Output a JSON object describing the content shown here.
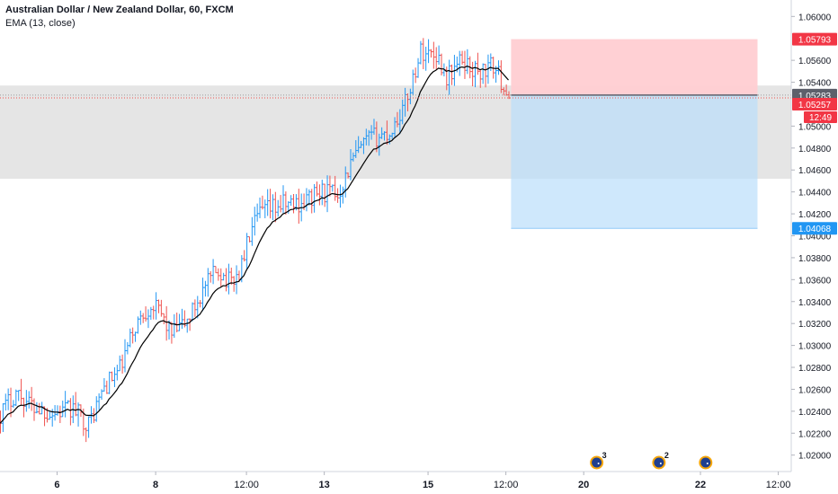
{
  "header": {
    "title": "Australian Dollar / New Zealand Dollar, 60, FXCM",
    "indicator": "EMA (13, close)"
  },
  "colors": {
    "up": "#2196f3",
    "down": "#ef5350",
    "ema": "#000000",
    "zone": "#e0e0e0",
    "stop_zone": "#ffcdd2",
    "target_zone": "#bbdefb",
    "axis_text": "#131722",
    "price_dotted": "#ef5350"
  },
  "chart_data": {
    "type": "ohlc",
    "symbol": "AUDNZD",
    "interval": "60",
    "indicator": "EMA (13, close)",
    "y_axis": {
      "ticks": [
        "1.06000",
        "1.05600",
        "1.05400",
        "1.05000",
        "1.04800",
        "1.04600",
        "1.04400",
        "1.04200",
        "1.04000",
        "1.03800",
        "1.03600",
        "1.03400",
        "1.03200",
        "1.03000",
        "1.02800",
        "1.02600",
        "1.02400",
        "1.02200",
        "1.02000"
      ],
      "tick_values": [
        1.06,
        1.056,
        1.054,
        1.05,
        1.048,
        1.046,
        1.044,
        1.042,
        1.04,
        1.038,
        1.036,
        1.034,
        1.032,
        1.03,
        1.028,
        1.026,
        1.024,
        1.022,
        1.02
      ],
      "range": [
        1.0185,
        1.0615
      ]
    },
    "x_axis": {
      "labels": [
        "6",
        "8",
        "12:00",
        "13",
        "15",
        "12:00",
        "20",
        "22",
        "12:00"
      ],
      "label_bars": [
        22,
        60,
        95,
        125,
        165,
        195,
        225,
        270,
        300
      ],
      "bold": [
        true,
        true,
        false,
        true,
        true,
        false,
        true,
        true,
        false
      ],
      "range_bars": [
        0,
        305
      ]
    },
    "close_path": [
      [
        0,
        1.0238
      ],
      [
        6,
        1.0258
      ],
      [
        12,
        1.0245
      ],
      [
        20,
        1.0238
      ],
      [
        28,
        1.0242
      ],
      [
        34,
        1.0228
      ],
      [
        40,
        1.0262
      ],
      [
        46,
        1.0278
      ],
      [
        52,
        1.0318
      ],
      [
        58,
        1.0338
      ],
      [
        62,
        1.0328
      ],
      [
        66,
        1.031
      ],
      [
        72,
        1.0322
      ],
      [
        78,
        1.035
      ],
      [
        84,
        1.037
      ],
      [
        88,
        1.0358
      ],
      [
        92,
        1.0365
      ],
      [
        96,
        1.04
      ],
      [
        100,
        1.042
      ],
      [
        108,
        1.0428
      ],
      [
        116,
        1.043
      ],
      [
        124,
        1.044
      ],
      [
        130,
        1.0438
      ],
      [
        136,
        1.047
      ],
      [
        142,
        1.0488
      ],
      [
        150,
        1.0494
      ],
      [
        156,
        1.052
      ],
      [
        162,
        1.0568
      ],
      [
        168,
        1.0566
      ],
      [
        172,
        1.0545
      ],
      [
        178,
        1.056
      ],
      [
        184,
        1.0548
      ],
      [
        190,
        1.0555
      ],
      [
        196,
        1.0528
      ]
    ],
    "levels": {
      "stop_label": "1.05793",
      "entry_label": "1.05283",
      "last_label": "1.05257",
      "countdown": "12:49",
      "target_label": "1.04068",
      "stop": 1.05793,
      "entry": 1.05283,
      "last": 1.05257,
      "target": 1.04068
    },
    "zone": {
      "top": 1.0537,
      "bottom": 1.0452
    },
    "position_bars": [
      197,
      292
    ],
    "events": [
      {
        "bar": 230,
        "count": "3"
      },
      {
        "bar": 254,
        "count": "2"
      },
      {
        "bar": 272,
        "count": ""
      }
    ]
  }
}
